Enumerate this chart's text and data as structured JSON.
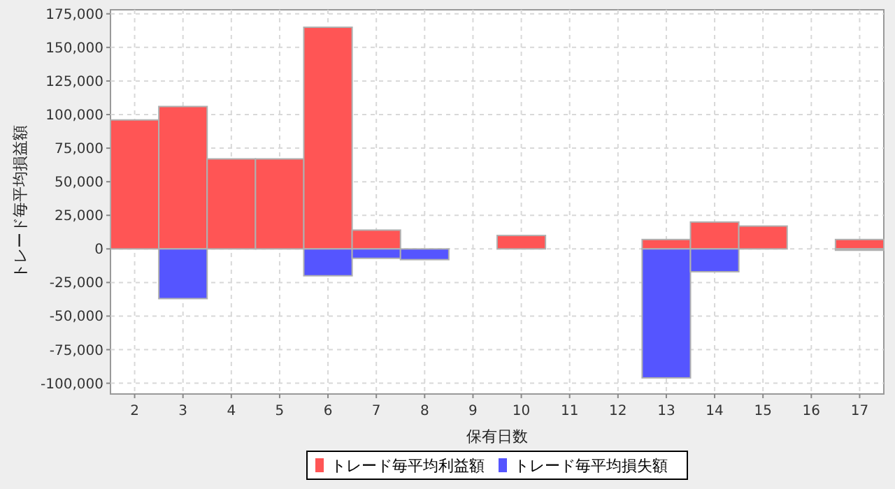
{
  "chart_data": {
    "type": "bar",
    "xlabel": "保有日数",
    "ylabel": "トレード毎平均損益額",
    "categories": [
      "2",
      "3",
      "4",
      "5",
      "6",
      "7",
      "8",
      "9",
      "10",
      "11",
      "12",
      "13",
      "14",
      "15",
      "16",
      "17"
    ],
    "series": [
      {
        "name": "トレード毎平均利益額",
        "color": "#ff5555",
        "values": [
          96000,
          106000,
          67000,
          67000,
          165000,
          14000,
          null,
          null,
          10000,
          null,
          null,
          7000,
          20000,
          17000,
          null,
          7000
        ]
      },
      {
        "name": "トレード毎平均損失額",
        "color": "#5555ff",
        "values": [
          null,
          -37000,
          null,
          null,
          -20000,
          -7000,
          -8000,
          null,
          null,
          null,
          null,
          -96000,
          -17000,
          null,
          null,
          -1000
        ]
      }
    ],
    "ylim": [
      -108000,
      178000
    ],
    "yticks": [
      {
        "value": -100000,
        "label": "-100,000"
      },
      {
        "value": -75000,
        "label": "-75,000"
      },
      {
        "value": -50000,
        "label": "-50,000"
      },
      {
        "value": -25000,
        "label": "-25,000"
      },
      0,
      {
        "value": 25000,
        "label": "25,000"
      },
      {
        "value": 50000,
        "label": "50,000"
      },
      {
        "value": 75000,
        "label": "75,000"
      },
      {
        "value": 100000,
        "label": "100,000"
      },
      {
        "value": 125000,
        "label": "125,000"
      },
      {
        "value": 150000,
        "label": "150,000"
      },
      {
        "value": 175000,
        "label": "175,000"
      }
    ],
    "grid": true,
    "legend": "bottom"
  }
}
